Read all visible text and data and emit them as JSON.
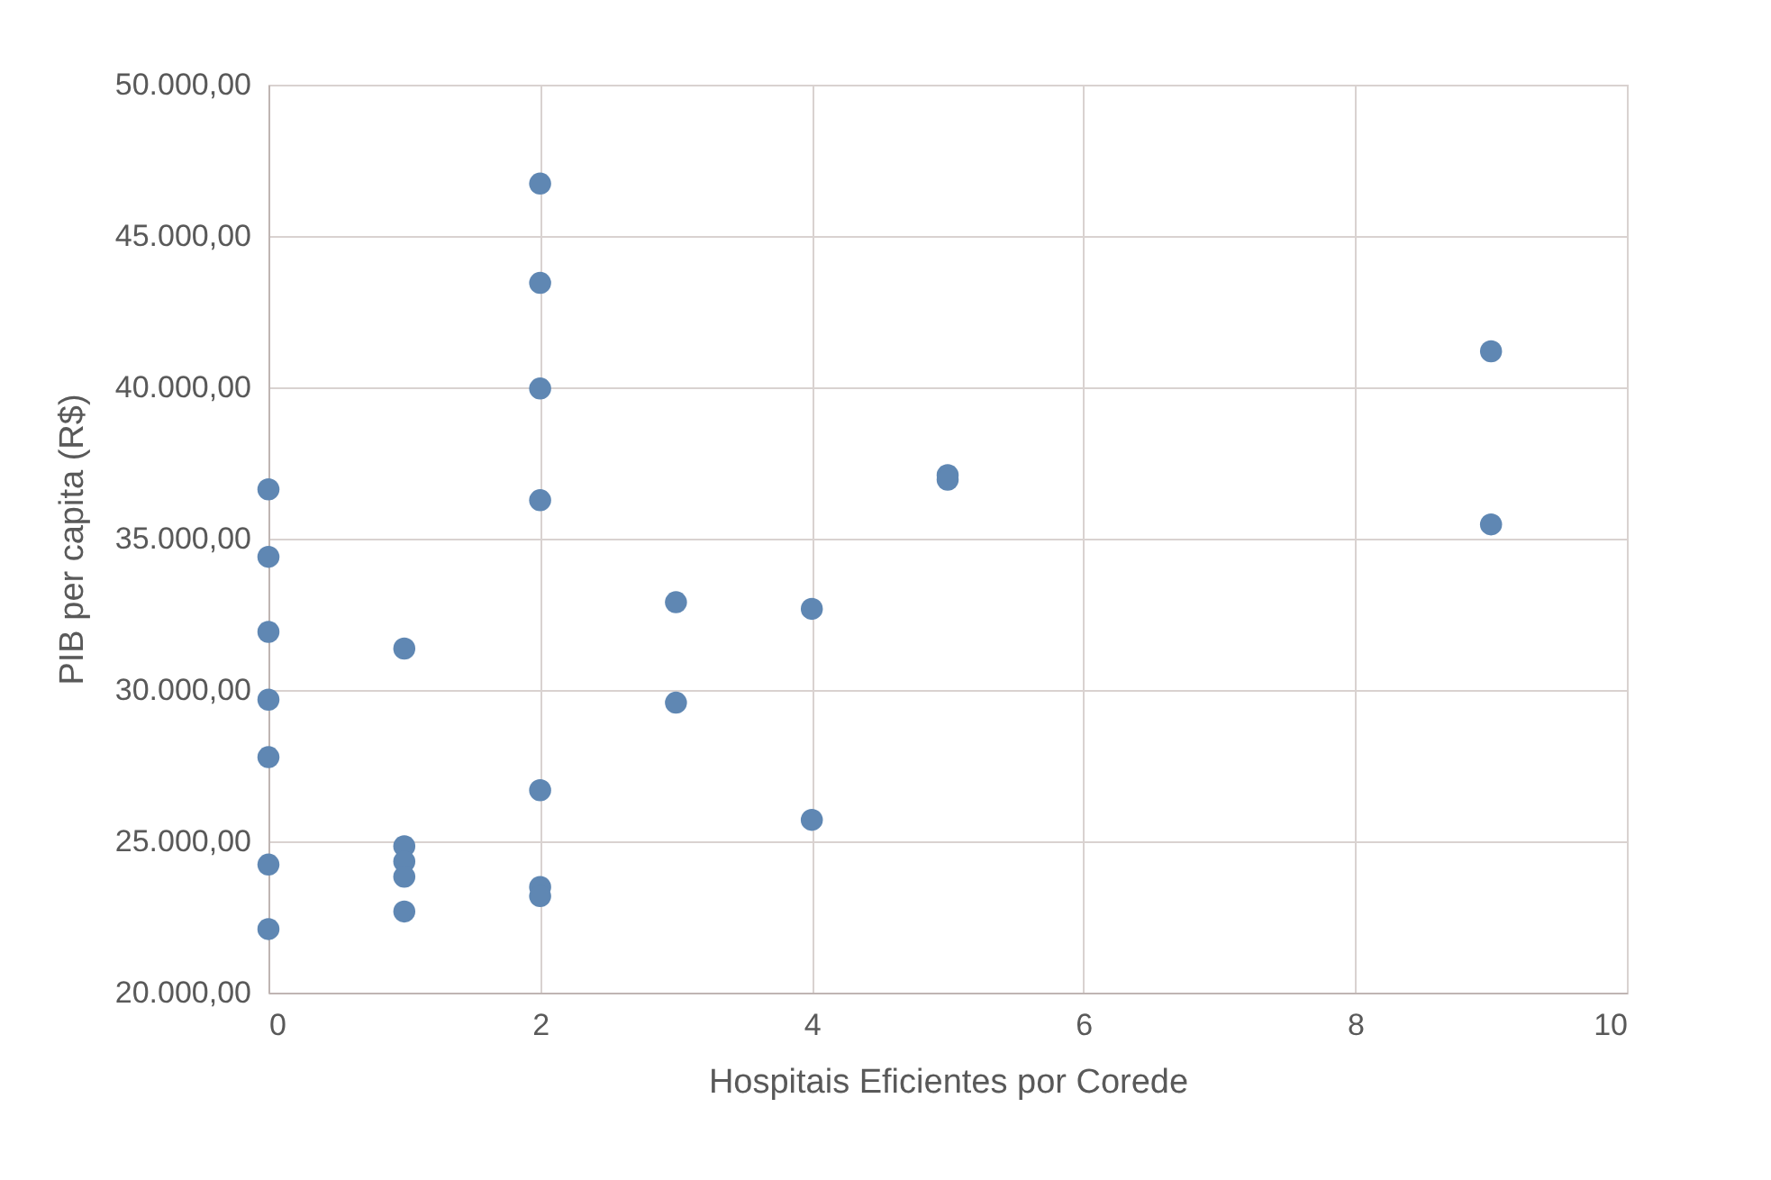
{
  "chart_data": {
    "type": "scatter",
    "xlabel": "Hospitais Eficientes por Corede",
    "ylabel": "PIB per capita (R$)",
    "x": [
      0,
      0,
      0,
      0,
      0,
      0,
      0,
      1,
      1,
      1,
      1,
      1,
      2,
      2,
      2,
      2,
      2,
      2,
      2,
      3,
      3,
      4,
      4,
      5,
      5,
      9,
      9
    ],
    "series": [
      {
        "color": "#5f87b3",
        "values": [
          36630,
          34400,
          31920,
          29680,
          27780,
          24230,
          22100,
          31370,
          24840,
          24330,
          23830,
          22680,
          46730,
          43450,
          39960,
          36270,
          26690,
          23490,
          23190,
          32900,
          29580,
          32680,
          25710,
          37100,
          36950,
          41190,
          35470
        ]
      }
    ],
    "xlim": [
      0,
      10
    ],
    "xticks": [
      0,
      2,
      4,
      6,
      8,
      10
    ],
    "ylim": [
      20000,
      50000
    ],
    "yticks": [
      {
        "value": 20000,
        "label": "20.000,00"
      },
      {
        "value": 25000,
        "label": "25.000,00"
      },
      {
        "value": 30000,
        "label": "30.000,00"
      },
      {
        "value": 35000,
        "label": "35.000,00"
      },
      {
        "value": 40000,
        "label": "40.000,00"
      },
      {
        "value": 45000,
        "label": "45.000,00"
      },
      {
        "value": 50000,
        "label": "50.000,00"
      }
    ],
    "grid": true,
    "marker": "circle",
    "legend": false
  }
}
